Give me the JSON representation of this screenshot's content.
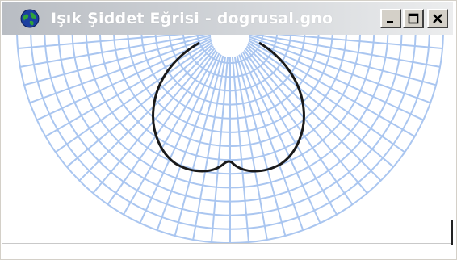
{
  "window": {
    "title": "Işık Şiddet Eğrisi - dogrusal.gno",
    "minimize_symbol": "_",
    "maximize_symbol": "□",
    "close_symbol": "×",
    "icons": [
      "globe-icon",
      "minimize-icon",
      "maximize-icon",
      "close-icon"
    ]
  },
  "polar_grid": {
    "rings": 14,
    "spokes_every_degrees": 5,
    "sweep": "lower-half",
    "grid_color": "#aac6f0"
  },
  "curve": {
    "color": "#1a1a1a",
    "shape": "light-intensity-distribution"
  },
  "colors": {
    "titlebar_start": "#b9bdc3",
    "titlebar_end": "#ecedee",
    "button_face": "#d4d0c8",
    "background": "#ffffff"
  }
}
